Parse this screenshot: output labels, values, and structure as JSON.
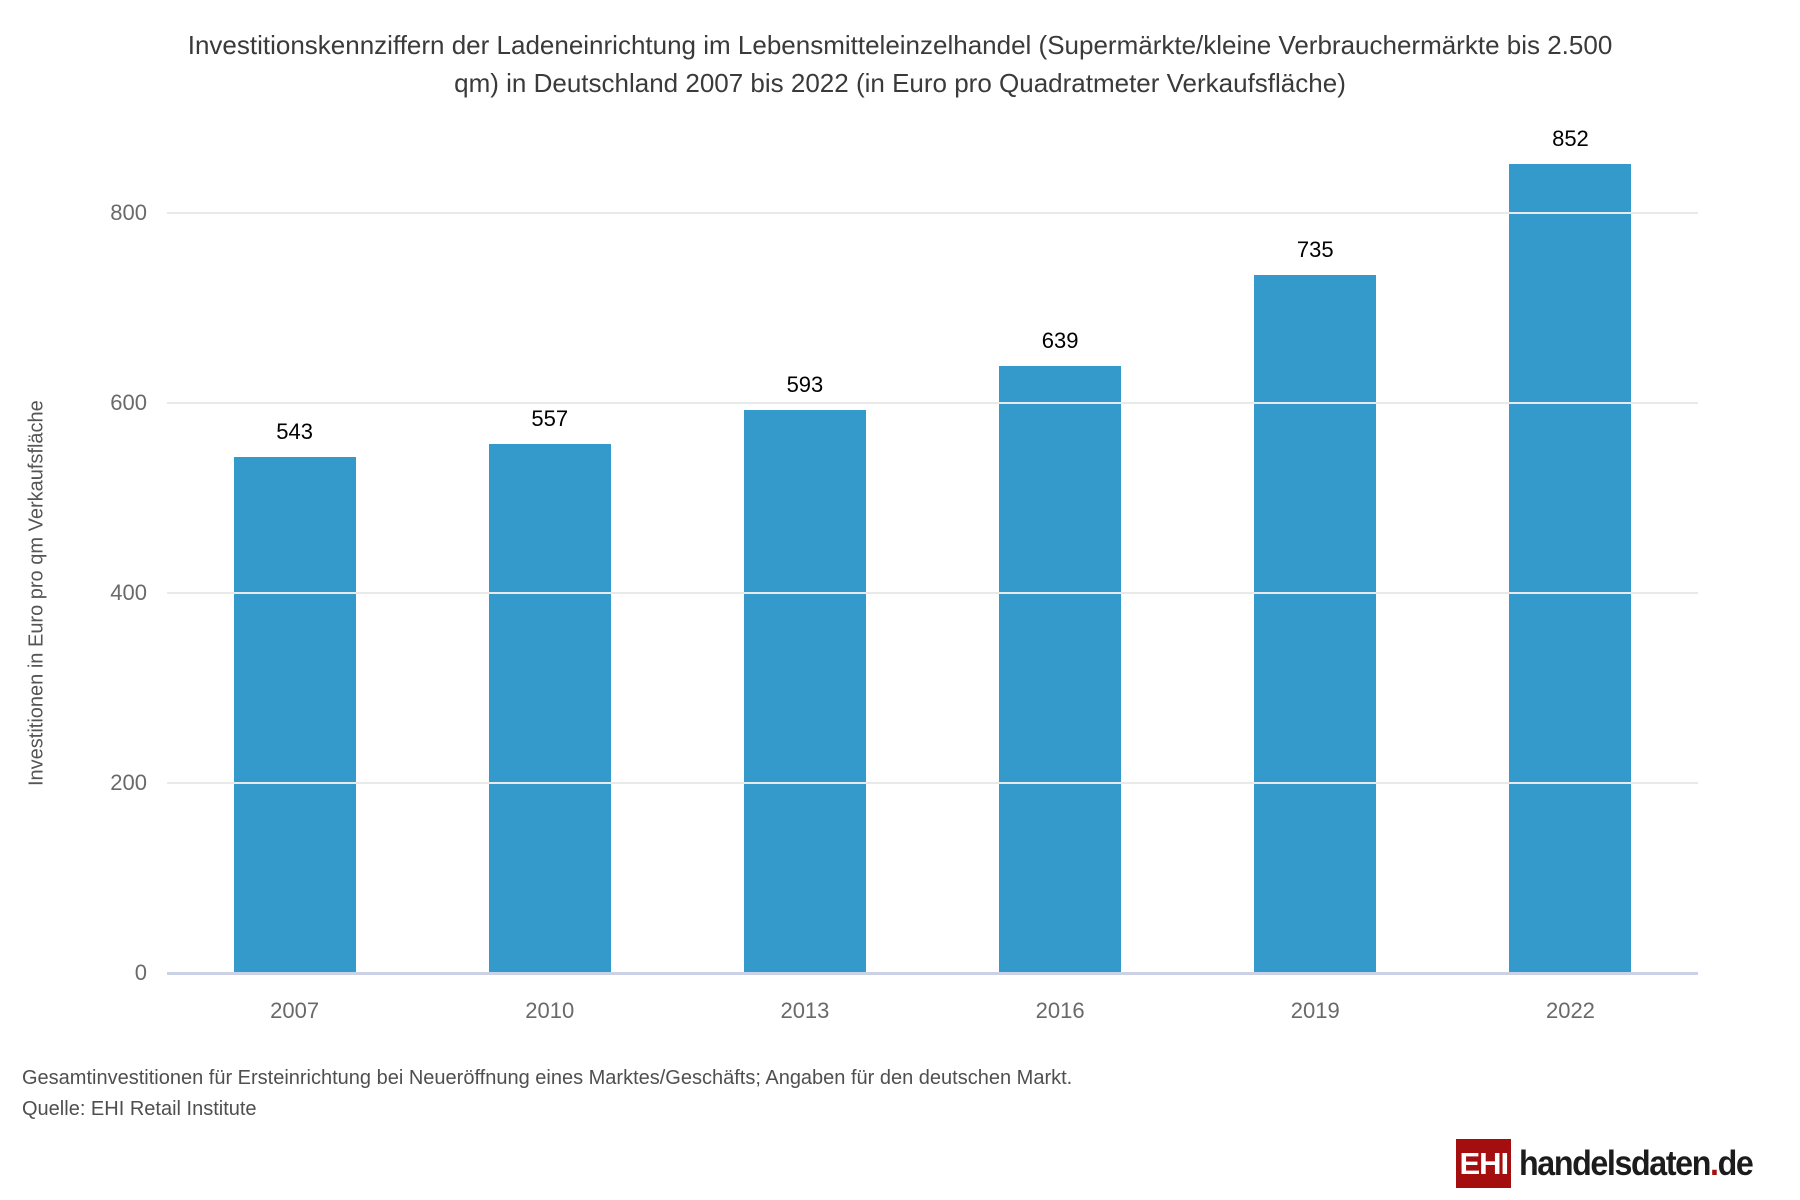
{
  "title": "Investitionskennziffern der Ladeneinrichtung im Lebensmitteleinzelhandel (Supermärkte/kleine Verbrauchermärkte bis 2.500 qm) in Deutschland 2007 bis 2022 (in Euro pro Quadratmeter Verkaufsfläche)",
  "chart_data": {
    "type": "bar",
    "categories": [
      "2007",
      "2010",
      "2013",
      "2016",
      "2019",
      "2022"
    ],
    "values": [
      543,
      557,
      593,
      639,
      735,
      852
    ],
    "title": "Investitionskennziffern der Ladeneinrichtung im Lebensmitteleinzelhandel (Supermärkte/kleine Verbrauchermärkte bis 2.500 qm) in Deutschland 2007 bis 2022 (in Euro pro Quadratmeter Verkaufsfläche)",
    "xlabel": "",
    "ylabel": "Investitionen in Euro pro qm Verkaufsfläche",
    "yticks": [
      0,
      200,
      400,
      600,
      800
    ],
    "ylim": [
      0,
      800
    ],
    "grid": true,
    "legend": "none",
    "data_labels": true,
    "bar_color": "#3499CB",
    "axis_line_color": "#CBD2E6",
    "gridline_color": "#E9E9E9"
  },
  "footnotes": {
    "line1": "Gesamtinvestitionen für Ersteinrichtung bei Neueröffnung eines Marktes/Geschäfts; Angaben für den deutschen Markt.",
    "line2": "Quelle: EHI Retail Institute"
  },
  "logo": {
    "badge": "EHI",
    "domain": "handelsdaten",
    "dot": ".",
    "tld": "de",
    "badge_color": "#A50E0E"
  }
}
